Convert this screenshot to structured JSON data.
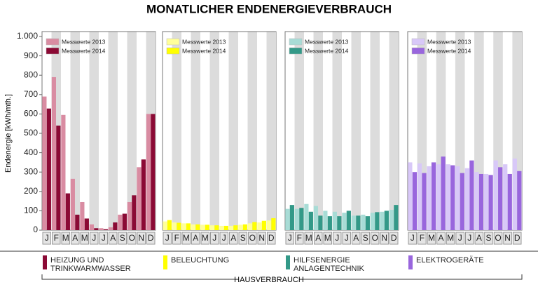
{
  "title": "MONATLICHER ENDENERGIEVERBRAUCH",
  "y_label": "Endenergie [kWh/mth.]",
  "ylim": [
    0,
    1000
  ],
  "yticks": [
    0,
    100,
    200,
    300,
    400,
    500,
    600,
    700,
    800,
    900,
    {
      "value": 1000,
      "label": "1.000"
    }
  ],
  "group_label": "HAUSVERBRAUCH",
  "chart_data": [
    {
      "type": "bar",
      "title": "HEIZUNG UND TRINKWARMWASSER",
      "categories": [
        "J",
        "F",
        "M",
        "A",
        "M",
        "J",
        "J",
        "A",
        "S",
        "O",
        "N",
        "D"
      ],
      "series": [
        {
          "name": "Messwerte 2013",
          "color": "#d98ca2",
          "values": [
            690,
            790,
            595,
            265,
            145,
            30,
            10,
            15,
            80,
            145,
            325,
            600
          ]
        },
        {
          "name": "Messwerte 2014",
          "color": "#8b0a35",
          "values": [
            628,
            540,
            190,
            80,
            60,
            10,
            5,
            40,
            85,
            180,
            365,
            600
          ]
        }
      ]
    },
    {
      "type": "bar",
      "title": "BELEUCHTUNG",
      "categories": [
        "J",
        "F",
        "M",
        "A",
        "M",
        "J",
        "J",
        "A",
        "S",
        "O",
        "N",
        "D"
      ],
      "series": [
        {
          "name": "Messwerte 2013",
          "color": "#ffff99",
          "values": [
            45,
            40,
            35,
            30,
            28,
            25,
            22,
            22,
            28,
            35,
            40,
            50
          ]
        },
        {
          "name": "Messwerte 2014",
          "color": "#ffff00",
          "values": [
            52,
            38,
            35,
            30,
            28,
            25,
            22,
            25,
            30,
            42,
            48,
            62
          ]
        }
      ]
    },
    {
      "type": "bar",
      "title": "HILFSENERGIE ANLAGENTECHNIK",
      "categories": [
        "J",
        "F",
        "M",
        "A",
        "M",
        "J",
        "J",
        "A",
        "S",
        "O",
        "N",
        "D"
      ],
      "series": [
        {
          "name": "Messwerte 2013",
          "color": "#a8dcd6",
          "values": [
            110,
            110,
            135,
            125,
            100,
            95,
            90,
            75,
            80,
            90,
            95,
            105
          ]
        },
        {
          "name": "Messwerte 2014",
          "color": "#339988",
          "values": [
            130,
            115,
            95,
            75,
            72,
            72,
            100,
            75,
            72,
            93,
            100,
            130
          ]
        }
      ]
    },
    {
      "type": "bar",
      "title": "ELEKTROGERÄTE",
      "categories": [
        "J",
        "F",
        "M",
        "A",
        "M",
        "J",
        "J",
        "A",
        "S",
        "O",
        "N",
        "D"
      ],
      "series": [
        {
          "name": "Messwerte 2013",
          "color": "#d8c8f8",
          "values": [
            350,
            345,
            330,
            340,
            340,
            330,
            320,
            300,
            290,
            360,
            340,
            370
          ]
        },
        {
          "name": "Messwerte 2014",
          "color": "#9966dd",
          "values": [
            300,
            295,
            350,
            380,
            335,
            295,
            360,
            290,
            285,
            325,
            290,
            305
          ]
        }
      ]
    }
  ]
}
